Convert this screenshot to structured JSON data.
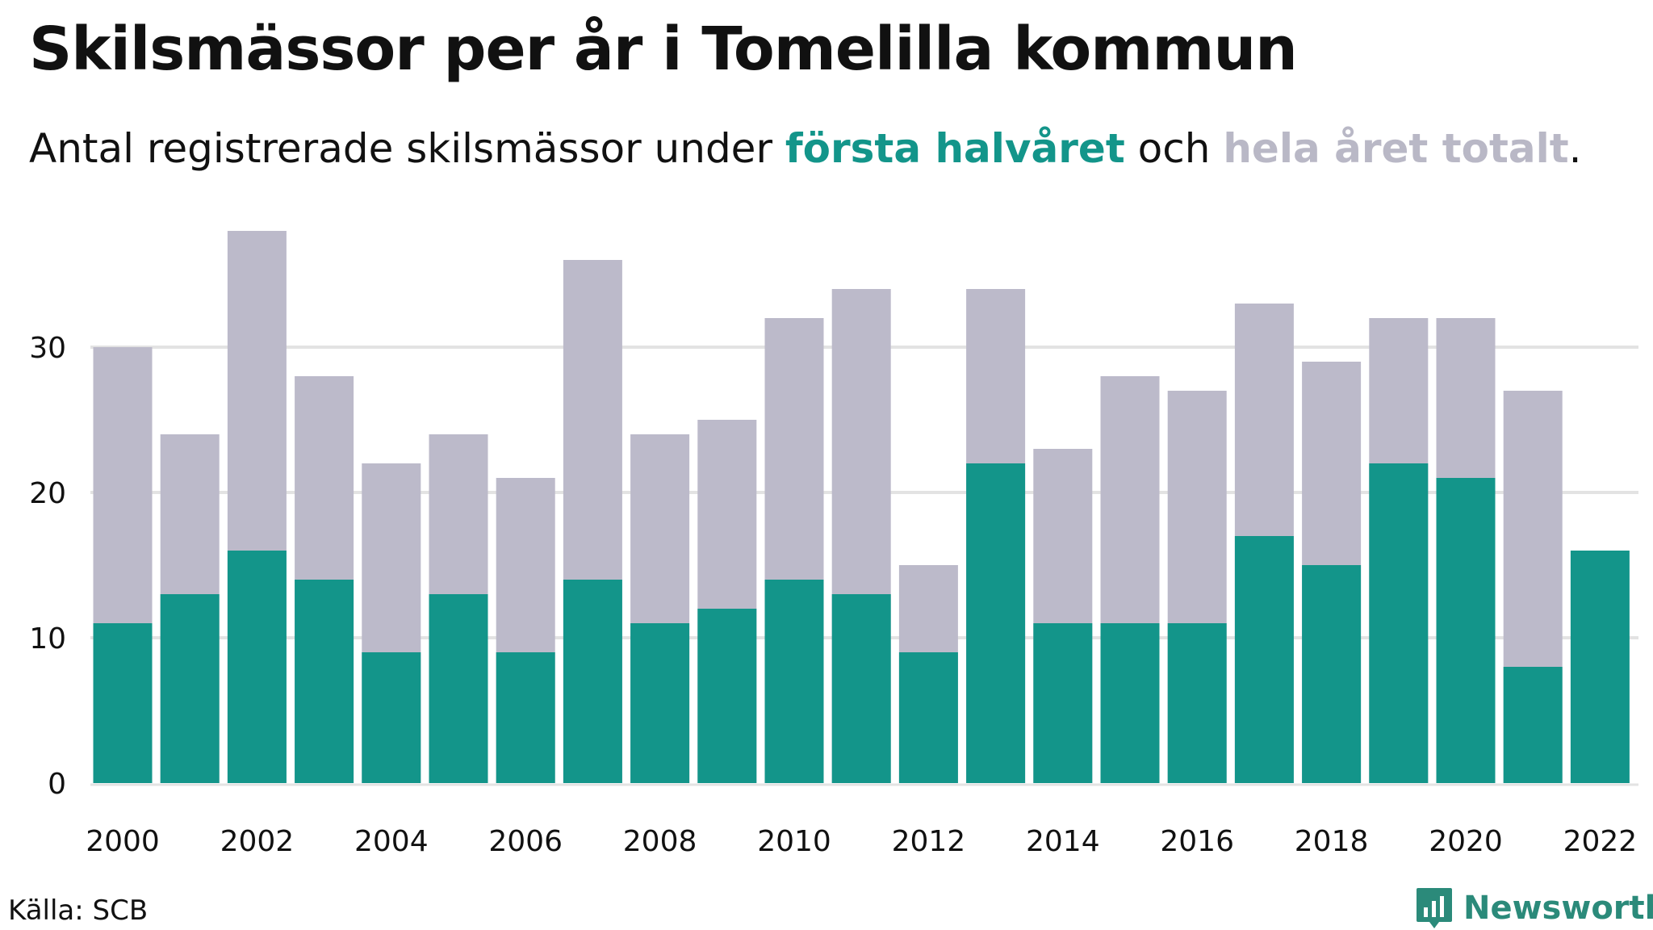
{
  "title": "Skilsmässor per år i Tomelilla kommun",
  "subtitle": {
    "prefix": "Antal registrerade skilsmässor under ",
    "highlight_first": "första halvåret",
    "middle": " och ",
    "highlight_total": "hela året totalt",
    "suffix": "."
  },
  "source": "Källa: SCB",
  "logo_text": "Newsworthy",
  "logo_icon": "bar-chart-icon",
  "colors": {
    "first_half": "#13958a",
    "total": "#bcbaca",
    "grid": "#e3e3e3",
    "logo": "#2b8a7a"
  },
  "chart_data": {
    "type": "bar",
    "stacked": false,
    "overlay": true,
    "categories": [
      "2000",
      "2001",
      "2002",
      "2003",
      "2004",
      "2005",
      "2006",
      "2007",
      "2008",
      "2009",
      "2010",
      "2011",
      "2012",
      "2013",
      "2014",
      "2015",
      "2016",
      "2017",
      "2018",
      "2019",
      "2020",
      "2021",
      "2022"
    ],
    "series": [
      {
        "name": "hela året totalt",
        "values": [
          30,
          24,
          38,
          28,
          22,
          24,
          21,
          36,
          24,
          25,
          32,
          34,
          15,
          34,
          23,
          28,
          27,
          33,
          29,
          32,
          32,
          27,
          null
        ]
      },
      {
        "name": "första halvåret",
        "values": [
          11,
          13,
          16,
          14,
          9,
          13,
          9,
          14,
          11,
          12,
          14,
          13,
          9,
          22,
          11,
          11,
          11,
          17,
          15,
          22,
          21,
          8,
          16
        ]
      }
    ],
    "xticks": [
      "2000",
      "2002",
      "2004",
      "2006",
      "2008",
      "2010",
      "2012",
      "2014",
      "2016",
      "2018",
      "2020",
      "2022"
    ],
    "yticks": [
      0,
      10,
      20,
      30
    ],
    "ylim": [
      0,
      38
    ],
    "grid": true,
    "xlabel": "",
    "ylabel": ""
  }
}
